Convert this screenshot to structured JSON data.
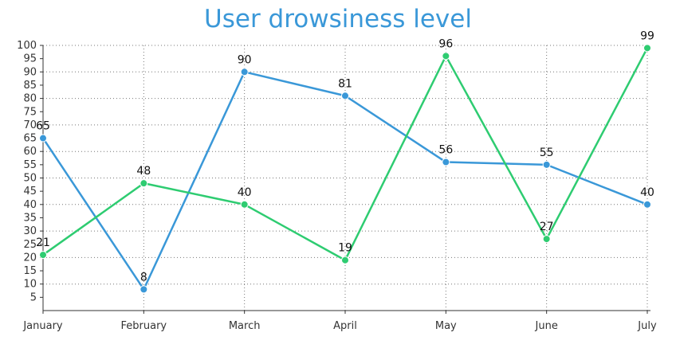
{
  "chart_data": {
    "type": "line",
    "title": "User drowsiness level",
    "xlabel": "",
    "ylabel": "",
    "categories": [
      "January",
      "February",
      "March",
      "April",
      "May",
      "June",
      "July"
    ],
    "y_ticks": [
      5,
      10,
      15,
      20,
      25,
      30,
      35,
      40,
      45,
      50,
      55,
      60,
      65,
      70,
      75,
      80,
      85,
      90,
      95,
      100
    ],
    "ylim": [
      0,
      100
    ],
    "grid": "dotted, x and y",
    "series": [
      {
        "values": [
          65,
          8,
          90,
          81,
          56,
          55,
          40
        ],
        "color": "#3a98d8"
      },
      {
        "values": [
          21,
          48,
          40,
          19,
          96,
          27,
          99
        ],
        "color": "#2ecc71"
      }
    ]
  }
}
